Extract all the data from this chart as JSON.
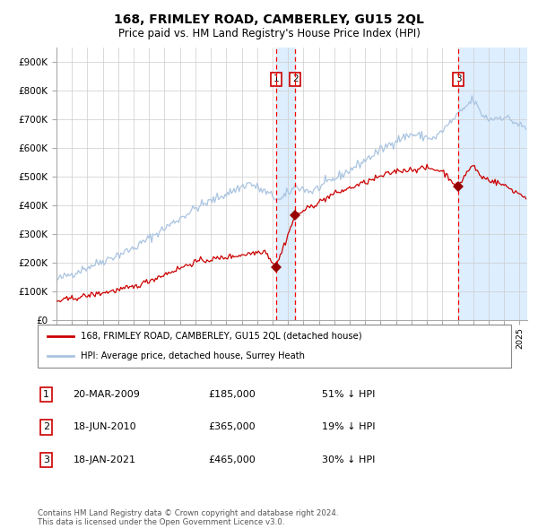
{
  "title": "168, FRIMLEY ROAD, CAMBERLEY, GU15 2QL",
  "subtitle": "Price paid vs. HM Land Registry's House Price Index (HPI)",
  "title_fontsize": 10,
  "subtitle_fontsize": 8.5,
  "background_color": "#ffffff",
  "plot_bg_color": "#ffffff",
  "grid_color": "#cccccc",
  "hpi_line_color": "#aac4e0",
  "price_line_color": "#cc0000",
  "sale_marker_color": "#990000",
  "ylim": [
    0,
    950000
  ],
  "yticks": [
    0,
    100000,
    200000,
    300000,
    400000,
    500000,
    600000,
    700000,
    800000,
    900000
  ],
  "ytick_labels": [
    "£0",
    "£100K",
    "£200K",
    "£300K",
    "£400K",
    "£500K",
    "£600K",
    "£700K",
    "£800K",
    "£900K"
  ],
  "legend_entries": [
    "168, FRIMLEY ROAD, CAMBERLEY, GU15 2QL (detached house)",
    "HPI: Average price, detached house, Surrey Heath"
  ],
  "table_rows": [
    [
      "1",
      "20-MAR-2009",
      "£185,000",
      "51% ↓ HPI"
    ],
    [
      "2",
      "18-JUN-2010",
      "£365,000",
      "19% ↓ HPI"
    ],
    [
      "3",
      "18-JAN-2021",
      "£465,000",
      "30% ↓ HPI"
    ]
  ],
  "footnote": "Contains HM Land Registry data © Crown copyright and database right 2024.\nThis data is licensed under the Open Government Licence v3.0.",
  "dashed_line_color": "#ff0000",
  "highlight_color": "#ddeeff",
  "sale_dates_numeric": [
    2009.22,
    2010.47,
    2021.05
  ],
  "sale_prices": [
    185000,
    365000,
    465000
  ],
  "sale_labels": [
    "1",
    "2",
    "3"
  ],
  "xmin": 1995,
  "xmax": 2025.5
}
